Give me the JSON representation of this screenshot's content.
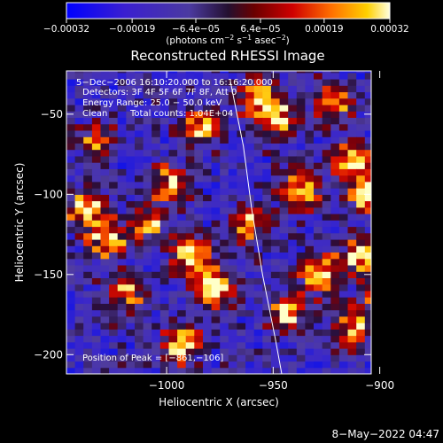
{
  "colorbar": {
    "ticks": [
      {
        "value": -0.00032,
        "label": "−0.00032"
      },
      {
        "value": -0.00019,
        "label": "−0.00019"
      },
      {
        "value": -6.4e-05,
        "label": "−6.4e−05"
      },
      {
        "value": 6.4e-05,
        "label": "6.4e−05"
      },
      {
        "value": 0.00019,
        "label": "0.00019"
      },
      {
        "value": 0.00032,
        "label": "0.00032"
      }
    ],
    "range": [
      -0.00032,
      0.00032
    ],
    "units_prefix": "(photons cm",
    "units_sup1": "−2",
    "units_mid1": " s",
    "units_sup2": "−1",
    "units_mid2": " asec",
    "units_sup3": "−2",
    "units_suffix": ")"
  },
  "title": "Reconstructed RHESSI Image",
  "annotations": {
    "time_range": "5−Dec−2006 16:10:20.000 to 16:16:20.000",
    "detectors": "Detectors: 3F 4F 5F 6F 7F 8F, Att 0",
    "energy": "Energy Range: 25.0 − 50.0 keV",
    "clean_label": "Clean",
    "total_counts": "Total counts: 1.04E+04",
    "peak": "Position of Peak = [−861,−106]"
  },
  "axes": {
    "xlabel": "Heliocentric X (arcsec)",
    "ylabel": "Heliocentric Y (arcsec)",
    "xlim": [
      -1047,
      -904
    ],
    "ylim": [
      -212,
      -23
    ],
    "xticks": [
      {
        "value": -1000,
        "label": "−1000"
      },
      {
        "value": -950,
        "label": "−950"
      },
      {
        "value": -900,
        "label": "−900"
      }
    ],
    "yticks": [
      {
        "value": -50,
        "label": "−50"
      },
      {
        "value": -100,
        "label": "−100"
      },
      {
        "value": -150,
        "label": "−150"
      },
      {
        "value": -200,
        "label": "−200"
      }
    ]
  },
  "limb_points": [
    [
      -970,
      -30
    ],
    [
      -964,
      -70
    ],
    [
      -960,
      -110
    ],
    [
      -955,
      -150
    ],
    [
      -949,
      -190
    ],
    [
      -946,
      -212
    ]
  ],
  "bright_sources": [
    [
      -1040,
      -110,
      0.85
    ],
    [
      -1020,
      -165,
      0.7
    ],
    [
      -1030,
      -130,
      0.8
    ],
    [
      -990,
      -140,
      0.9
    ],
    [
      -985,
      -60,
      0.7
    ],
    [
      -980,
      -160,
      0.95
    ],
    [
      -940,
      -100,
      0.85
    ],
    [
      -930,
      -150,
      0.8
    ],
    [
      -915,
      -80,
      0.9
    ],
    [
      -907,
      -100,
      1.0
    ],
    [
      -910,
      -140,
      0.75
    ],
    [
      -960,
      -40,
      0.7
    ],
    [
      -1000,
      -95,
      0.7
    ],
    [
      -950,
      -55,
      0.85
    ],
    [
      -925,
      -45,
      0.75
    ],
    [
      -995,
      -195,
      0.8
    ],
    [
      -945,
      -175,
      0.8
    ],
    [
      -915,
      -185,
      0.7
    ],
    [
      -1035,
      -70,
      0.6
    ],
    [
      -965,
      -120,
      0.65
    ],
    [
      -900,
      -165,
      0.7
    ],
    [
      -1010,
      -120,
      0.6
    ]
  ],
  "footer_date": "8−May−2022 04:47"
}
